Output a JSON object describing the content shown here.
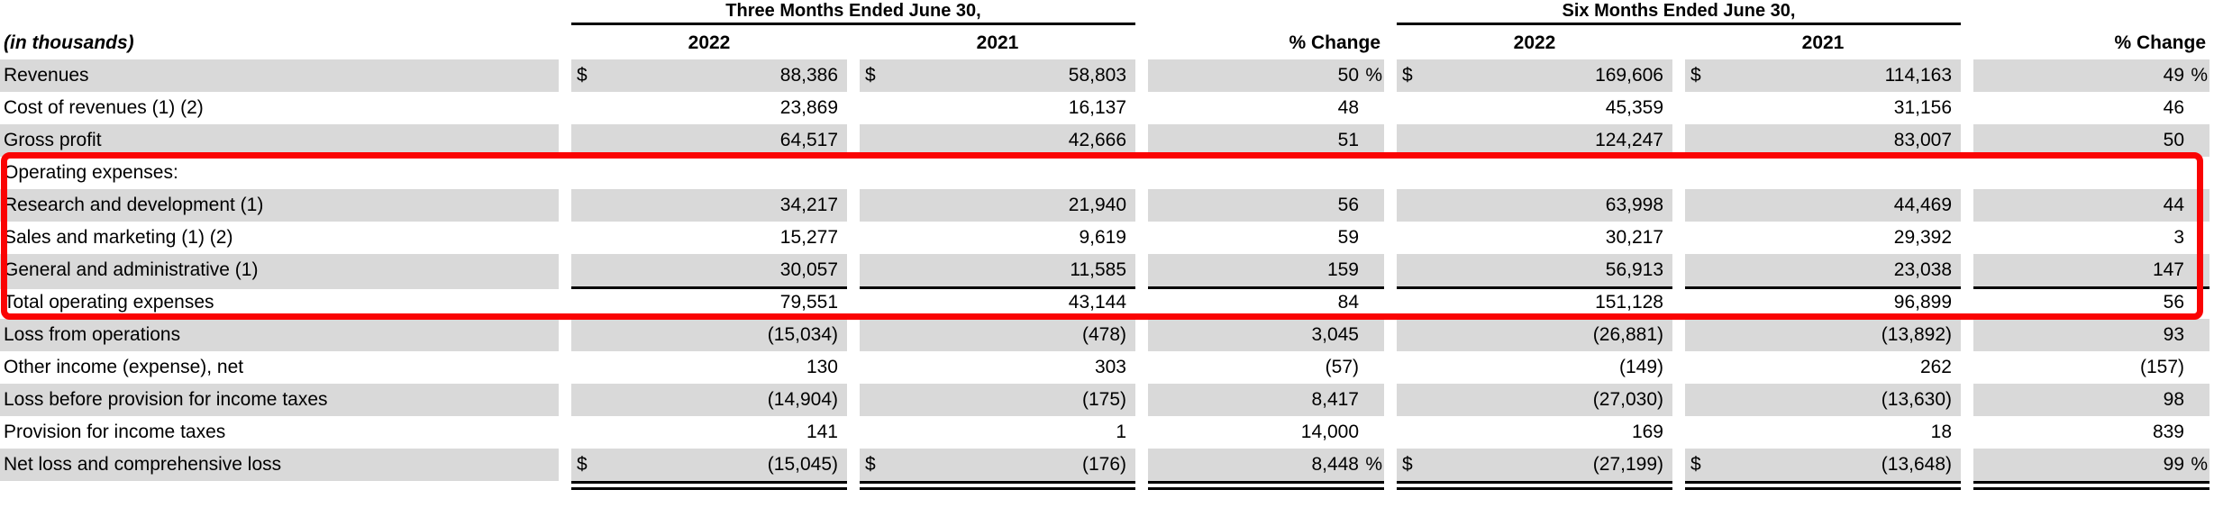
{
  "table": {
    "unit_label": "(in thousands)",
    "groups": {
      "g1": "Three Months Ended June 30,",
      "g2": "Six Months Ended June 30,"
    },
    "columns": [
      "2022",
      "2021",
      "% Change",
      "2022",
      "2021",
      "% Change"
    ],
    "rows": [
      {
        "label": "Revenues",
        "dollar1": "$",
        "c1": "88,386",
        "dollar2": "$",
        "c2": "58,803",
        "c3": "50",
        "p3": "%",
        "dollar4": "$",
        "c4": "169,606",
        "dollar5": "$",
        "c5": "114,163",
        "c6": "49",
        "p6": "%"
      },
      {
        "label": "Cost of revenues (1) (2)",
        "c1": "23,869",
        "c2": "16,137",
        "c3": "48",
        "c4": "45,359",
        "c5": "31,156",
        "c6": "46"
      },
      {
        "label": "Gross profit",
        "c1": "64,517",
        "c2": "42,666",
        "c3": "51",
        "c4": "124,247",
        "c5": "83,007",
        "c6": "50"
      },
      {
        "label": "Operating expenses:"
      },
      {
        "label": "Research and development (1)",
        "c1": "34,217",
        "c2": "21,940",
        "c3": "56",
        "c4": "63,998",
        "c5": "44,469",
        "c6": "44"
      },
      {
        "label": "Sales and marketing (1) (2)",
        "c1": "15,277",
        "c2": "9,619",
        "c3": "59",
        "c4": "30,217",
        "c5": "29,392",
        "c6": "3"
      },
      {
        "label": "General and administrative (1)",
        "c1": "30,057",
        "c2": "11,585",
        "c3": "159",
        "c4": "56,913",
        "c5": "23,038",
        "c6": "147"
      },
      {
        "label": "Total operating expenses",
        "c1": "79,551",
        "c2": "43,144",
        "c3": "84",
        "c4": "151,128",
        "c5": "96,899",
        "c6": "56"
      },
      {
        "label": "Loss from operations",
        "c1": "(15,034)",
        "c2": "(478)",
        "c3": "3,045",
        "c4": "(26,881)",
        "c5": "(13,892)",
        "c6": "93"
      },
      {
        "label": "Other income (expense), net",
        "c1": "130",
        "c2": "303",
        "c3": "(57)",
        "c4": "(149)",
        "c5": "262",
        "c6": "(157)"
      },
      {
        "label": "Loss before provision for income taxes",
        "c1": "(14,904)",
        "c2": "(175)",
        "c3": "8,417",
        "c4": "(27,030)",
        "c5": "(13,630)",
        "c6": "98"
      },
      {
        "label": "Provision for income taxes",
        "c1": "141",
        "c2": "1",
        "c3": "14,000",
        "c4": "169",
        "c5": "18",
        "c6": "839"
      },
      {
        "label": "Net loss and comprehensive loss",
        "dollar1": "$",
        "c1": "(15,045)",
        "dollar2": "$",
        "c2": "(176)",
        "c3": "8,448",
        "p3": "%",
        "dollar4": "$",
        "c4": "(27,199)",
        "dollar5": "$",
        "c5": "(13,648)",
        "c6": "99",
        "p6": "%"
      }
    ],
    "colors": {
      "row_shade": "#d9d9d9",
      "rule": "#000000",
      "highlight_box": "#fa0404"
    }
  }
}
